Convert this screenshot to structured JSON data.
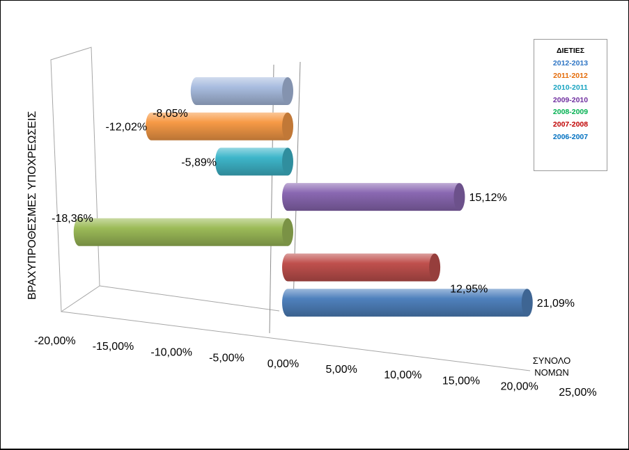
{
  "chart_data": {
    "type": "bar",
    "orientation": "horizontal",
    "style": "3d-cylinder",
    "ylabel": "ΒΡΑΧΥΠΡΟΘΕΣΜΕΣ ΥΠΟΧΡΕΩΣΕΙΣ",
    "category_label": "ΣΥΝΟΛΟ ΝΟΜΩΝ",
    "legend_title": "ΔΙΕΤΙΕΣ",
    "legend_position": "right",
    "xlim": [
      -20,
      25
    ],
    "x_ticks": [
      "-20,00%",
      "-15,00%",
      "-10,00%",
      "-5,00%",
      "0,00%",
      "5,00%",
      "10,00%",
      "15,00%",
      "20,00%",
      "25,00%"
    ],
    "series": [
      {
        "name": "2012-2013",
        "value": -8.05,
        "label": "-8,05%",
        "color": "#a9bde0",
        "legend_color": "#2e75c4"
      },
      {
        "name": "2011-2012",
        "value": -12.02,
        "label": "-12,02%",
        "color": "#f79a46",
        "legend_color": "#e46c0a"
      },
      {
        "name": "2010-2011",
        "value": -5.89,
        "label": "-5,89%",
        "color": "#3eb6ca",
        "legend_color": "#17a3c0"
      },
      {
        "name": "2009-2010",
        "value": 15.12,
        "label": "15,12%",
        "color": "#8a68b2",
        "legend_color": "#7030a0"
      },
      {
        "name": "2008-2009",
        "value": -18.36,
        "label": "-18,36%",
        "color": "#9cbb58",
        "legend_color": "#00b050"
      },
      {
        "name": "2007-2008",
        "value": 12.95,
        "label": "12,95%",
        "color": "#c0504d",
        "legend_color": "#c00000"
      },
      {
        "name": "2006-2007",
        "value": 21.09,
        "label": "21,09%",
        "color": "#4f81bd",
        "legend_color": "#0070c0"
      }
    ]
  }
}
